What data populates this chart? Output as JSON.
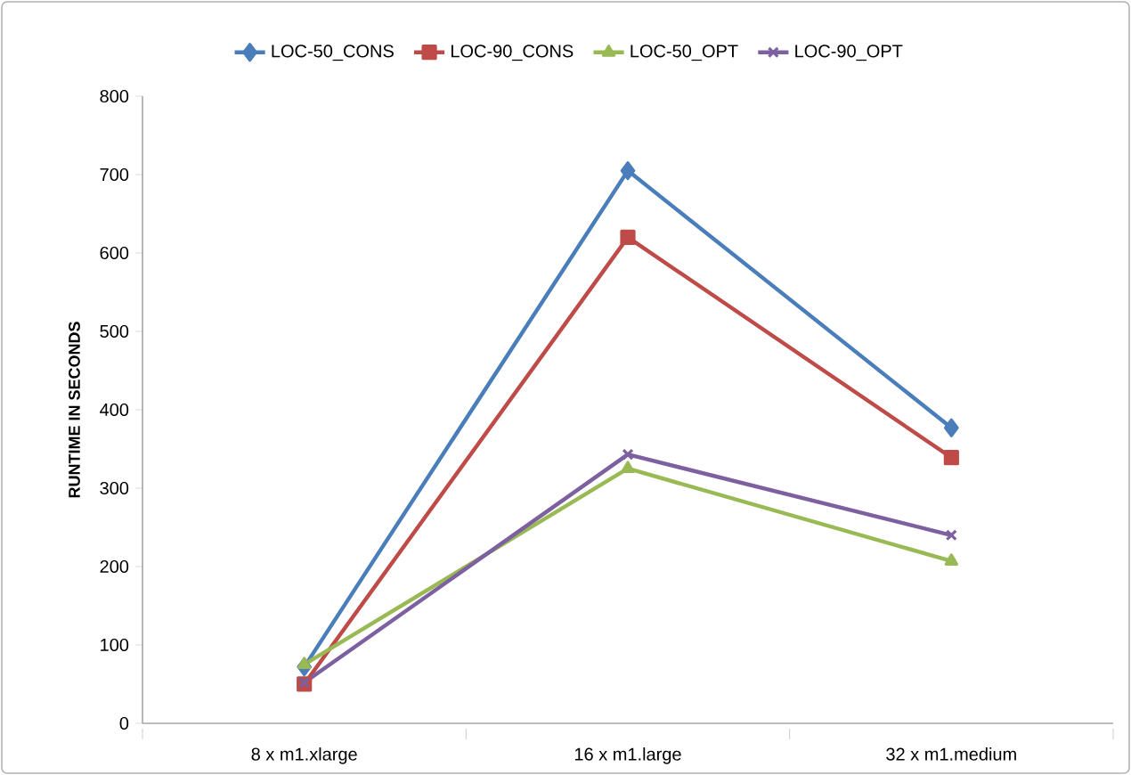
{
  "chart_data": {
    "type": "line",
    "ylabel": "RUNTIME IN SECONDS",
    "categories": [
      "8 x m1.xlarge",
      "16 x m1.large",
      "32 x m1.medium"
    ],
    "ylim": [
      0,
      800
    ],
    "yticks": [
      0,
      100,
      200,
      300,
      400,
      500,
      600,
      700,
      800
    ],
    "grid": false,
    "legend": "top",
    "series": [
      {
        "name": "LOC-50_CONS",
        "color": "#4a7ebb",
        "marker": "diamond",
        "values": [
          72,
          705,
          377
        ]
      },
      {
        "name": "LOC-90_CONS",
        "color": "#be4b48",
        "marker": "square",
        "values": [
          50,
          620,
          339
        ]
      },
      {
        "name": "LOC-50_OPT",
        "color": "#98b954",
        "marker": "triangle",
        "values": [
          75,
          325,
          207
        ]
      },
      {
        "name": "LOC-90_OPT",
        "color": "#7d60a0",
        "marker": "cross",
        "values": [
          52,
          343,
          240
        ]
      }
    ]
  }
}
